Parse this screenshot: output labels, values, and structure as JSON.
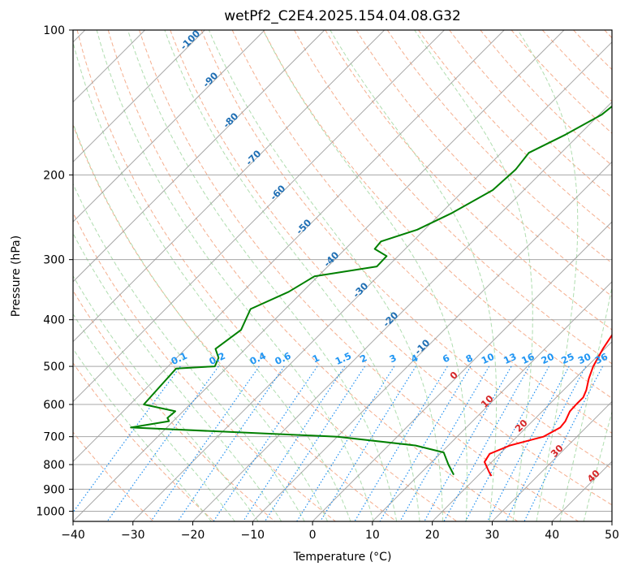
{
  "chart_data": {
    "type": "line",
    "title": "wetPf2_C2E4.2025.154.04.08.G32",
    "xlabel": "Temperature (°C)",
    "ylabel": "Pressure (hPa)",
    "xlim": [
      -40,
      50
    ],
    "ylim_hpa": [
      1050,
      100
    ],
    "y_scale": "log",
    "grid": true,
    "skew_ticks_note": "skew-T log-p diagram",
    "x_ticks": [
      -40,
      -30,
      -20,
      -10,
      0,
      10,
      20,
      30,
      40,
      50
    ],
    "y_ticks": [
      100,
      200,
      300,
      400,
      500,
      600,
      700,
      800,
      900,
      1000
    ],
    "series": [
      {
        "color": "#ff0000",
        "points": [
          [
            100,
            3.8
          ],
          [
            110,
            4.2
          ],
          [
            120,
            2.8
          ],
          [
            130,
            2.0
          ],
          [
            145,
            2.0
          ],
          [
            160,
            3.2
          ],
          [
            175,
            5.0
          ],
          [
            190,
            5.6
          ],
          [
            200,
            5.6
          ],
          [
            220,
            6.4
          ],
          [
            250,
            7.8
          ],
          [
            280,
            8.6
          ],
          [
            300,
            9.8
          ],
          [
            330,
            12.5
          ],
          [
            370,
            16.8
          ],
          [
            400,
            18.8
          ],
          [
            430,
            18.9
          ],
          [
            460,
            19.7
          ],
          [
            500,
            21.0
          ],
          [
            530,
            22.3
          ],
          [
            560,
            23.8
          ],
          [
            580,
            24.5
          ],
          [
            600,
            24.5
          ],
          [
            620,
            24.6
          ],
          [
            650,
            25.5
          ],
          [
            670,
            25.7
          ],
          [
            700,
            24.4
          ],
          [
            730,
            20.3
          ],
          [
            760,
            18.3
          ],
          [
            790,
            18.8
          ],
          [
            830,
            21.3
          ],
          [
            845,
            22.3
          ]
        ]
      },
      {
        "color": "#008000",
        "points": [
          [
            100,
            -9.0
          ],
          [
            115,
            -14.5
          ],
          [
            130,
            -18.4
          ],
          [
            150,
            -19.6
          ],
          [
            165,
            -22.3
          ],
          [
            180,
            -25.4
          ],
          [
            195,
            -24.8
          ],
          [
            215,
            -25.2
          ],
          [
            240,
            -28.2
          ],
          [
            260,
            -31.2
          ],
          [
            275,
            -35.3
          ],
          [
            285,
            -35.1
          ],
          [
            295,
            -31.9
          ],
          [
            310,
            -31.8
          ],
          [
            325,
            -40.6
          ],
          [
            350,
            -42.3
          ],
          [
            380,
            -45.8
          ],
          [
            420,
            -43.9
          ],
          [
            460,
            -45.0
          ],
          [
            480,
            -43.0
          ],
          [
            500,
            -42.2
          ],
          [
            505,
            -48.3
          ],
          [
            600,
            -47.7
          ],
          [
            620,
            -41.3
          ],
          [
            640,
            -41.5
          ],
          [
            650,
            -40.7
          ],
          [
            670,
            -46.0
          ],
          [
            700,
            -10.0
          ],
          [
            730,
            4.5
          ],
          [
            755,
            10.4
          ],
          [
            800,
            13.2
          ],
          [
            840,
            15.8
          ]
        ]
      }
    ],
    "dry_adiabat_labels": [
      "-100",
      "-90",
      "-80",
      "-70",
      "-60",
      "-50",
      "-40",
      "-30",
      "-20",
      "-10"
    ],
    "moist_adiabat_labels": [
      "0",
      "10",
      "20",
      "30",
      "40"
    ],
    "mixing_ratio_labels": [
      "0.1",
      "0.2",
      "0.4",
      "0.6",
      "1",
      "1.5",
      "2",
      "3",
      "4",
      "6",
      "8",
      "10",
      "13",
      "16",
      "20",
      "25",
      "30",
      "36"
    ],
    "mixing_ratio_values": [
      0.1,
      0.2,
      0.4,
      0.6,
      1,
      1.5,
      2,
      3,
      4,
      6,
      8,
      10,
      13,
      16,
      20,
      25,
      30,
      36
    ],
    "colors": {
      "temperature": "#ff0000",
      "dewpoint": "#008000",
      "dry_adiabat": "#f4a582",
      "moist_adiabat": "#a6d9a6",
      "mixing_ratio": "#1f8ff0",
      "isotherm": "#999999",
      "dry_label": "#1f6fb4",
      "moist_label": "#d62728",
      "mix_label": "#2196f3"
    }
  }
}
